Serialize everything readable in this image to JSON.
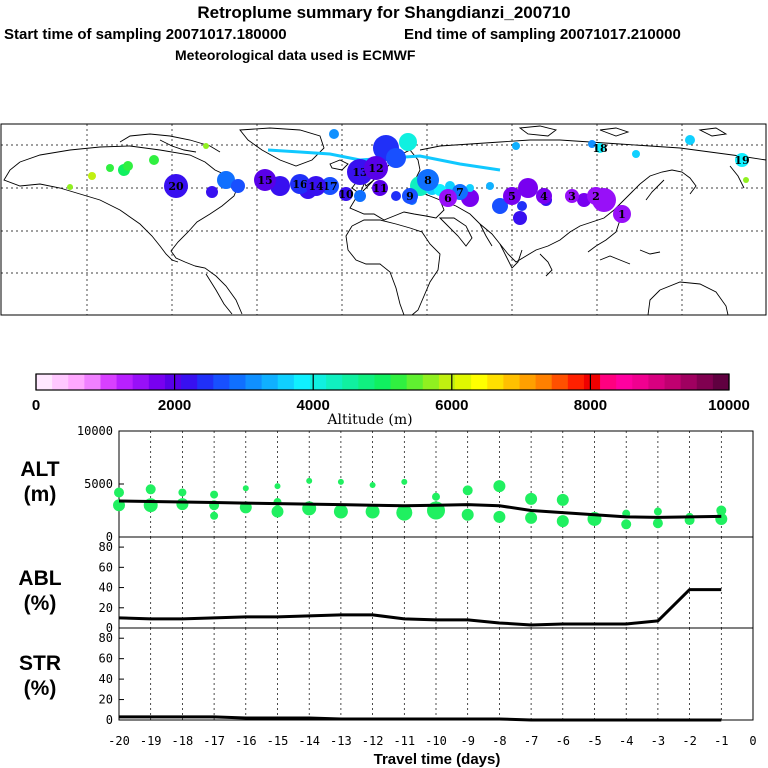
{
  "header": {
    "title": "Retroplume summary for Shangdianzi_200710",
    "start_sampling": "Start time of sampling 20071017.180000",
    "end_sampling": "End time of sampling 20071017.210000",
    "met_data": "Meteorological data used is ECMWF"
  },
  "colorbar": {
    "label": "Altitude (m)",
    "tick_labels": [
      "0",
      "2000",
      "4000",
      "6000",
      "8000",
      "10000"
    ],
    "range": [
      0,
      10000
    ],
    "colors": [
      "#ffe8ff",
      "#ffc8ff",
      "#ffa8ff",
      "#f080ff",
      "#d840ff",
      "#b820ff",
      "#9810f8",
      "#7800f0",
      "#5800e8",
      "#3810f0",
      "#2030f8",
      "#1850ff",
      "#1070ff",
      "#1090ff",
      "#10b0ff",
      "#10d0ff",
      "#10f0ff",
      "#10f0e0",
      "#10f0c0",
      "#10f0a0",
      "#10f080",
      "#10f060",
      "#30f040",
      "#60f030",
      "#90f020",
      "#c0f010",
      "#e0f800",
      "#ffff00",
      "#ffe000",
      "#ffc000",
      "#ffa000",
      "#ff8000",
      "#ff5000",
      "#ff2000",
      "#f00000",
      "#ff0080",
      "#ff00a0",
      "#f00090",
      "#d80080",
      "#c00070",
      "#a00060",
      "#800050",
      "#600040"
    ]
  },
  "map_labels": [
    {
      "n": "20",
      "alt": 2200
    },
    {
      "n": "15",
      "alt": 2000
    },
    {
      "n": "17",
      "alt": 2600
    },
    {
      "n": "16",
      "alt": 2500
    },
    {
      "n": "14",
      "alt": 2300
    },
    {
      "n": "13",
      "alt": 2100
    },
    {
      "n": "12",
      "alt": 2000
    },
    {
      "n": "11",
      "alt": 1900
    },
    {
      "n": "10",
      "alt": 2300
    },
    {
      "n": "9",
      "alt": 2600
    },
    {
      "n": "8",
      "alt": 3000
    },
    {
      "n": "7",
      "alt": 2800
    },
    {
      "n": "6",
      "alt": 1600
    },
    {
      "n": "5",
      "alt": 1800
    },
    {
      "n": "4",
      "alt": 1700
    },
    {
      "n": "3",
      "alt": 1500
    },
    {
      "n": "2",
      "alt": 1400
    },
    {
      "n": "1",
      "alt": 1500
    },
    {
      "n": "19",
      "alt": 3800
    },
    {
      "n": "18",
      "alt": 3900
    }
  ],
  "panels": {
    "alt": {
      "label_line1": "ALT",
      "label_line2": "(m)"
    },
    "abl": {
      "label_line1": "ABL",
      "label_line2": "(%)"
    },
    "str": {
      "label_line1": "STR",
      "label_line2": "(%)"
    }
  },
  "xaxis_label": "Travel time (days)",
  "chart_data": [
    {
      "type": "line",
      "title": "ALT (m)",
      "xlabel": "Travel time (days)",
      "ylabel": "ALT (m)",
      "xlim": [
        -20,
        0
      ],
      "ylim": [
        0,
        10000
      ],
      "x_ticks": [
        "-20",
        "-19",
        "-18",
        "-17",
        "-16",
        "-15",
        "-14",
        "-13",
        "-12",
        "-11",
        "-10",
        "-9",
        "-8",
        "-7",
        "-6",
        "-5",
        "-4",
        "-3",
        "-2",
        "-1",
        "0"
      ],
      "y_ticks": [
        "0",
        "5000",
        "10000"
      ],
      "x": [
        -20,
        -19,
        -18,
        -17,
        -16,
        -15,
        -14,
        -13,
        -12,
        -11,
        -10,
        -9,
        -8,
        -7,
        -6,
        -5,
        -4,
        -3,
        -2,
        -1
      ],
      "values": [
        3400,
        3350,
        3300,
        3250,
        3200,
        3150,
        3100,
        3050,
        3000,
        2950,
        3000,
        3050,
        2950,
        2500,
        2300,
        2100,
        1900,
        1850,
        1900,
        1950
      ],
      "scatter": {
        "x": [
          -20,
          -20,
          -19,
          -19,
          -18,
          -18,
          -17,
          -17,
          -17,
          -16,
          -16,
          -15,
          -15,
          -15,
          -14,
          -14,
          -13,
          -13,
          -12,
          -12,
          -11,
          -11,
          -10,
          -10,
          -9,
          -9,
          -8,
          -8,
          -7,
          -7,
          -6,
          -6,
          -5,
          -4,
          -4,
          -3,
          -3,
          -2,
          -2,
          -1,
          -1
        ],
        "y": [
          4200,
          3000,
          4500,
          3000,
          4200,
          3100,
          4000,
          3000,
          2000,
          4600,
          2800,
          4800,
          3300,
          2400,
          5300,
          2700,
          5200,
          2400,
          4900,
          2400,
          5200,
          2300,
          3800,
          2500,
          4400,
          2100,
          4800,
          1900,
          3600,
          1800,
          3500,
          1500,
          1700,
          2200,
          1200,
          2400,
          1300,
          1900,
          1600,
          2500,
          1700
        ],
        "sizes": [
          5,
          6,
          5,
          7,
          4,
          6,
          4,
          5,
          4,
          3,
          6,
          3,
          4,
          6,
          3,
          7,
          3,
          7,
          3,
          7,
          3,
          8,
          4,
          9,
          5,
          6,
          6,
          6,
          6,
          6,
          6,
          6,
          7,
          4,
          5,
          4,
          5,
          4,
          5,
          5,
          6
        ]
      }
    },
    {
      "type": "line",
      "title": "ABL (%)",
      "ylabel": "ABL (%)",
      "xlim": [
        -20,
        0
      ],
      "ylim": [
        0,
        90
      ],
      "y_ticks": [
        "0",
        "20",
        "40",
        "60",
        "80"
      ],
      "x": [
        -20,
        -19,
        -18,
        -17,
        -16,
        -15,
        -14,
        -13,
        -12,
        -11,
        -10,
        -9,
        -8,
        -7,
        -6,
        -5,
        -4,
        -3,
        -2,
        -1
      ],
      "values": [
        10,
        9,
        9,
        10,
        11,
        11,
        12,
        13,
        13,
        9,
        8,
        8,
        5,
        3,
        4,
        4,
        4,
        7,
        38,
        38
      ]
    },
    {
      "type": "line",
      "title": "STR (%)",
      "ylabel": "STR (%)",
      "xlim": [
        -20,
        0
      ],
      "ylim": [
        0,
        90
      ],
      "y_ticks": [
        "0",
        "20",
        "40",
        "60",
        "80"
      ],
      "x": [
        -20,
        -19,
        -18,
        -17,
        -16,
        -15,
        -14,
        -13,
        -12,
        -11,
        -10,
        -9,
        -8,
        -7,
        -6,
        -5,
        -4,
        -3,
        -2,
        -1
      ],
      "values": [
        3,
        3,
        3,
        3,
        2,
        2,
        2,
        1,
        1,
        1,
        1,
        1,
        1,
        0,
        0,
        0,
        0,
        0,
        0,
        0
      ]
    }
  ]
}
